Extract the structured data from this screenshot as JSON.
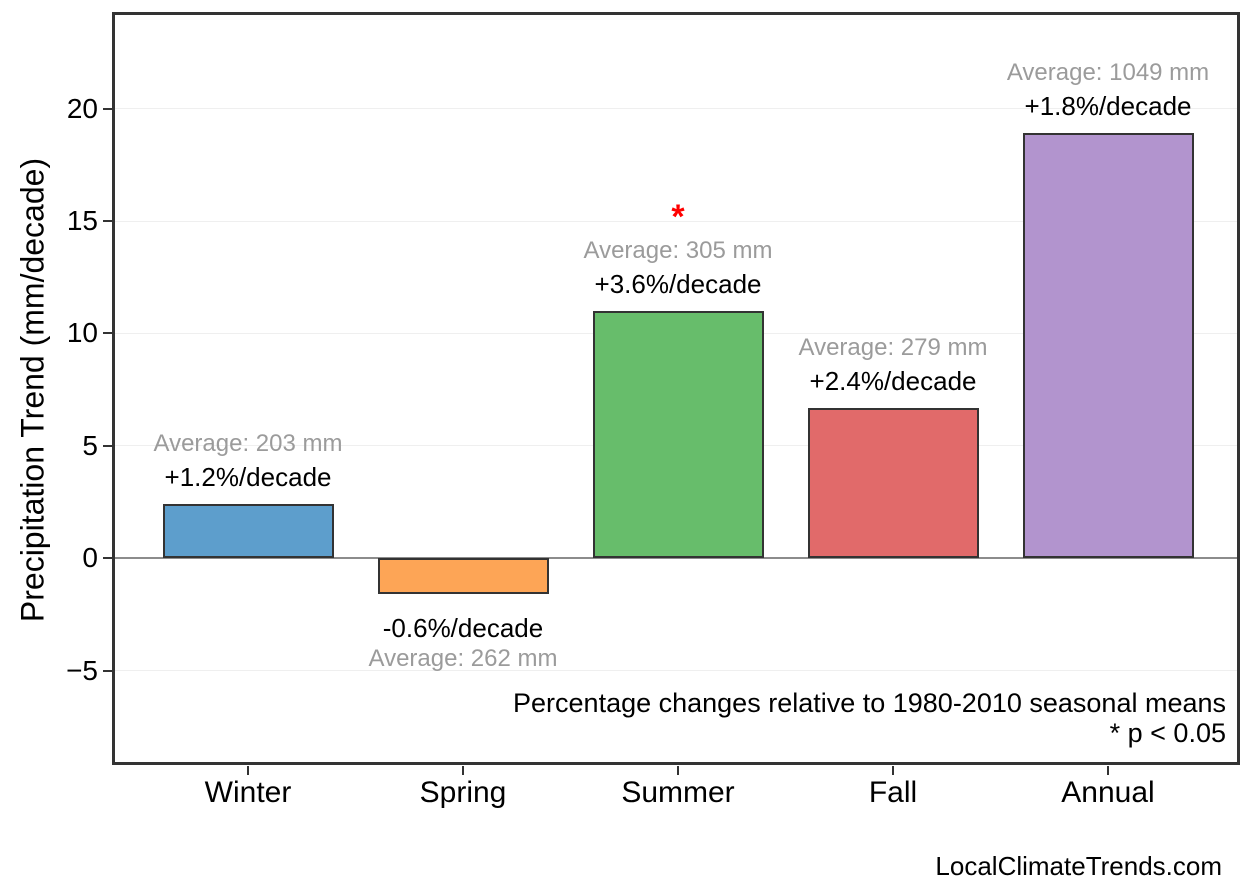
{
  "chart_data": {
    "type": "bar",
    "title": "",
    "categories": [
      "Winter",
      "Spring",
      "Summer",
      "Fall",
      "Annual"
    ],
    "values": [
      2.4,
      -1.6,
      11.0,
      6.7,
      18.9
    ],
    "units": "mm/decade",
    "bar_colors": [
      "#5D9ECC",
      "#FDA556",
      "#67BD6B",
      "#E16A6A",
      "#B294CE"
    ],
    "avg_labels": [
      "Average: 203 mm",
      "Average: 262 mm",
      "Average: 305 mm",
      "Average: 279 mm",
      "Average: 1049 mm"
    ],
    "pct_labels": [
      "+1.2%/decade",
      "-0.6%/decade",
      "+3.6%/decade",
      "+2.4%/decade",
      "+1.8%/decade"
    ],
    "averages_mm": [
      203,
      262,
      305,
      279,
      1049
    ],
    "pct_per_decade": [
      1.2,
      -0.6,
      3.6,
      2.4,
      1.8
    ],
    "significant": [
      false,
      false,
      true,
      false,
      false
    ],
    "significance_marker": "*",
    "significance_marker_color": "#FF0000",
    "xlabel": "",
    "ylabel": "Precipitation Trend (mm/decade)",
    "y_ticks": [
      20,
      15,
      10,
      5,
      0,
      -5
    ],
    "y_tick_labels": [
      "20",
      "15",
      "10",
      "5",
      "0",
      "−5"
    ],
    "ylim": [
      -9.2,
      24.3
    ],
    "grid": true,
    "zero_line": true,
    "legend": "none",
    "colors": {
      "bar_edge": "#333333",
      "grid": "#EFEFEF",
      "zero_line": "#8C8C8C",
      "avg_text": "#9B9B9B",
      "pct_text": "#000000",
      "axis": "#333333"
    }
  },
  "annotations": {
    "note": "Percentage changes relative to 1980-2010 seasonal means",
    "significance": "* p < 0.05"
  },
  "footer": {
    "watermark": "LocalClimateTrends.com"
  }
}
